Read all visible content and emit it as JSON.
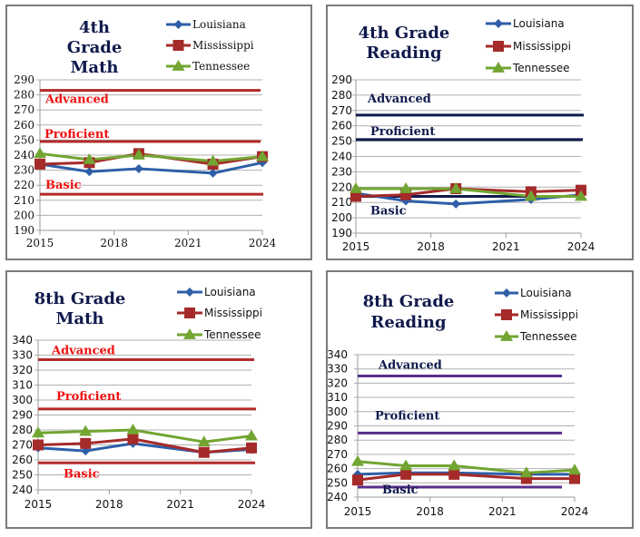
{
  "colors": {
    "louisiana": "#2e5fa8",
    "mississippi": "#a52a2a",
    "tennessee": "#72a532",
    "title": "#101a4c",
    "grid": "#b0b0b0",
    "math_level_line": "#b22a2a",
    "math_level_text": "#ee1111",
    "reading4_level_line": "#0f1a4c",
    "reading4_level_text": "#0f1a4c",
    "reading8_level_line": "#5a2d8a",
    "reading8_level_text": "#0f1a4c"
  },
  "chart_data": [
    {
      "id": "grade4-math",
      "type": "line",
      "title": [
        "4th",
        "Grade",
        "Math"
      ],
      "xlabel": "",
      "ylabel": "",
      "xticks": [
        2015,
        2018,
        2021,
        2024
      ],
      "xlim": [
        2015,
        2024
      ],
      "yticks": [
        190,
        200,
        210,
        220,
        230,
        240,
        250,
        260,
        270,
        280,
        290
      ],
      "ylim": [
        190,
        290
      ],
      "grid": true,
      "legend_position": "top-right",
      "x": [
        2015,
        2017,
        2019,
        2022,
        2024
      ],
      "series": [
        {
          "name": "Louisiana",
          "marker": "diamond",
          "values": [
            234,
            229,
            231,
            228,
            235
          ]
        },
        {
          "name": "Mississippi",
          "marker": "square",
          "values": [
            234,
            235,
            241,
            234,
            239
          ]
        },
        {
          "name": "Tennessee",
          "marker": "triangle",
          "values": [
            241,
            237,
            240,
            236,
            239
          ]
        }
      ],
      "levels": [
        {
          "name": "Advanced",
          "value": 283
        },
        {
          "name": "Proficient",
          "value": 249
        },
        {
          "name": "Basic",
          "value": 214
        }
      ]
    },
    {
      "id": "grade4-reading",
      "type": "line",
      "title": [
        "4th Grade",
        "Reading"
      ],
      "xlabel": "",
      "ylabel": "",
      "xticks": [
        2015,
        2018,
        2021,
        2024
      ],
      "xlim": [
        2015,
        2024
      ],
      "yticks": [
        190,
        200,
        210,
        220,
        230,
        240,
        250,
        260,
        270,
        280,
        290
      ],
      "ylim": [
        190,
        290
      ],
      "grid": true,
      "legend_position": "top-right",
      "x": [
        2015,
        2017,
        2019,
        2022,
        2024
      ],
      "series": [
        {
          "name": "Louisiana",
          "marker": "diamond",
          "values": [
            216,
            211,
            209,
            212,
            215
          ]
        },
        {
          "name": "Mississippi",
          "marker": "square",
          "values": [
            214,
            215,
            219,
            217,
            218
          ]
        },
        {
          "name": "Tennessee",
          "marker": "triangle",
          "values": [
            219,
            219,
            219,
            214,
            214
          ]
        }
      ],
      "levels": [
        {
          "name": "Advanced",
          "value": 267
        },
        {
          "name": "Proficient",
          "value": 251
        },
        {
          "name": "Basic",
          "value": 214
        }
      ]
    },
    {
      "id": "grade8-math",
      "type": "line",
      "title": [
        "8th Grade",
        "Math"
      ],
      "xlabel": "",
      "ylabel": "",
      "xticks": [
        2015,
        2018,
        2021,
        2024
      ],
      "xlim": [
        2015,
        2024
      ],
      "yticks": [
        240,
        250,
        260,
        270,
        280,
        290,
        300,
        310,
        320,
        330,
        340
      ],
      "ylim": [
        240,
        340
      ],
      "grid": true,
      "legend_position": "top-right",
      "x": [
        2015,
        2017,
        2019,
        2022,
        2024
      ],
      "series": [
        {
          "name": "Louisiana",
          "marker": "diamond",
          "values": [
            268,
            266,
            271,
            265,
            267
          ]
        },
        {
          "name": "Mississippi",
          "marker": "square",
          "values": [
            270,
            271,
            274,
            265,
            268
          ]
        },
        {
          "name": "Tennessee",
          "marker": "triangle",
          "values": [
            278,
            279,
            280,
            272,
            276
          ]
        }
      ],
      "levels": [
        {
          "name": "Advanced",
          "value": 327
        },
        {
          "name": "Proficient",
          "value": 294
        },
        {
          "name": "Basic",
          "value": 258
        }
      ]
    },
    {
      "id": "grade8-reading",
      "type": "line",
      "title": [
        "8th Grade",
        "Reading"
      ],
      "xlabel": "",
      "ylabel": "",
      "xticks": [
        2015,
        2018,
        2021,
        2024
      ],
      "xlim": [
        2015,
        2024
      ],
      "yticks": [
        240,
        250,
        260,
        270,
        280,
        290,
        300,
        310,
        320,
        330,
        340
      ],
      "ylim": [
        240,
        340
      ],
      "grid": true,
      "legend_position": "top-right",
      "x": [
        2015,
        2017,
        2019,
        2022,
        2024
      ],
      "series": [
        {
          "name": "Louisiana",
          "marker": "diamond",
          "values": [
            256,
            257,
            257,
            256,
            256
          ]
        },
        {
          "name": "Mississippi",
          "marker": "square",
          "values": [
            252,
            256,
            256,
            253,
            253
          ]
        },
        {
          "name": "Tennessee",
          "marker": "triangle",
          "values": [
            265,
            262,
            262,
            257,
            259
          ]
        }
      ],
      "levels": [
        {
          "name": "Advanced",
          "value": 325
        },
        {
          "name": "Proficient",
          "value": 285
        },
        {
          "name": "Basic",
          "value": 247
        }
      ]
    }
  ]
}
